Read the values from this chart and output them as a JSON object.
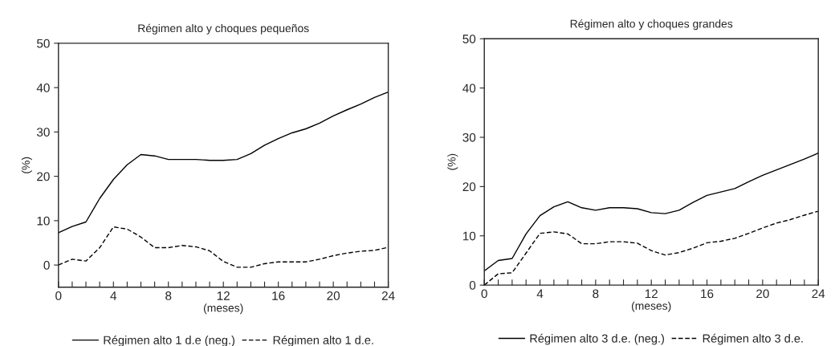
{
  "chart_data": [
    {
      "type": "line",
      "title": "Régimen alto y choques pequeños",
      "xlabel": "(meses)",
      "ylabel": "(%)",
      "xlim": [
        0,
        24
      ],
      "ylim": [
        -5,
        50
      ],
      "xticks": [
        0,
        {
          "value": 1,
          "label": null
        },
        {
          "value": 2,
          "label": null
        },
        {
          "value": 3,
          "label": null
        },
        4,
        {
          "value": 5,
          "label": null
        },
        {
          "value": 6,
          "label": null
        },
        {
          "value": 7,
          "label": null
        },
        8,
        {
          "value": 9,
          "label": null
        },
        {
          "value": 10,
          "label": null
        },
        {
          "value": 11,
          "label": null
        },
        12,
        {
          "value": 13,
          "label": null
        },
        {
          "value": 14,
          "label": null
        },
        {
          "value": 15,
          "label": null
        },
        16,
        {
          "value": 17,
          "label": null
        },
        {
          "value": 18,
          "label": null
        },
        {
          "value": 19,
          "label": null
        },
        20,
        {
          "value": 21,
          "label": null
        },
        {
          "value": 22,
          "label": null
        },
        {
          "value": 23,
          "label": null
        },
        24
      ],
      "yticks": [
        0,
        10,
        20,
        30,
        40,
        50
      ],
      "grid": false,
      "legend": "bottom",
      "x": [
        0,
        1,
        2,
        3,
        4,
        5,
        6,
        7,
        8,
        9,
        10,
        11,
        12,
        13,
        14,
        15,
        16,
        17,
        18,
        19,
        20,
        21,
        22,
        23,
        24
      ],
      "series": [
        {
          "name": "Régimen alto 1 d.e (neg.)",
          "color": "#000000",
          "line_style": "solid",
          "values": [
            7.3,
            8.7,
            9.7,
            15,
            19.3,
            22.6,
            24.9,
            24.6,
            23.8,
            23.8,
            23.8,
            23.6,
            23.6,
            23.8,
            25.1,
            27,
            28.5,
            29.8,
            30.7,
            32,
            33.6,
            35,
            36.3,
            37.8,
            39
          ]
        },
        {
          "name": "Régimen alto 1 d.e.",
          "color": "#000000",
          "line_style": "dashed",
          "values": [
            0,
            1.3,
            0.9,
            3.9,
            8.6,
            8.1,
            6.3,
            3.9,
            3.9,
            4.4,
            4.1,
            3.2,
            0.8,
            -0.5,
            -0.5,
            0.3,
            0.7,
            0.7,
            0.7,
            1.3,
            2.1,
            2.7,
            3.1,
            3.3,
            4
          ]
        }
      ]
    },
    {
      "type": "line",
      "title": "Régimen alto y choques grandes",
      "xlabel": "(meses)",
      "ylabel": "(%)",
      "xlim": [
        0,
        24
      ],
      "ylim": [
        0,
        50
      ],
      "xticks": [
        0,
        {
          "value": 1,
          "label": null
        },
        {
          "value": 2,
          "label": null
        },
        {
          "value": 3,
          "label": null
        },
        4,
        {
          "value": 5,
          "label": null
        },
        {
          "value": 6,
          "label": null
        },
        {
          "value": 7,
          "label": null
        },
        8,
        {
          "value": 9,
          "label": null
        },
        {
          "value": 10,
          "label": null
        },
        {
          "value": 11,
          "label": null
        },
        12,
        {
          "value": 13,
          "label": null
        },
        {
          "value": 14,
          "label": null
        },
        {
          "value": 15,
          "label": null
        },
        16,
        {
          "value": 17,
          "label": null
        },
        {
          "value": 18,
          "label": null
        },
        {
          "value": 19,
          "label": null
        },
        20,
        {
          "value": 21,
          "label": null
        },
        {
          "value": 22,
          "label": null
        },
        {
          "value": 23,
          "label": null
        },
        24
      ],
      "yticks": [
        0,
        10,
        20,
        30,
        40,
        50
      ],
      "grid": false,
      "legend": "bottom",
      "x": [
        0,
        1,
        2,
        3,
        4,
        5,
        6,
        7,
        8,
        9,
        10,
        11,
        12,
        13,
        14,
        15,
        16,
        17,
        18,
        19,
        20,
        21,
        22,
        23,
        24
      ],
      "series": [
        {
          "name": "Régimen alto 3 d.e. (neg.)",
          "color": "#000000",
          "line_style": "solid",
          "values": [
            2.9,
            5,
            5.4,
            10.4,
            14.1,
            15.9,
            16.9,
            15.7,
            15.2,
            15.7,
            15.7,
            15.5,
            14.7,
            14.5,
            15.2,
            16.8,
            18.2,
            18.9,
            19.6,
            21,
            22.3,
            23.4,
            24.5,
            25.6,
            26.8
          ]
        },
        {
          "name": "Régimen alto 3 d.e.",
          "color": "#000000",
          "line_style": "dashed",
          "values": [
            0,
            2.3,
            2.5,
            6.5,
            10.5,
            10.8,
            10.4,
            8.4,
            8.4,
            8.8,
            8.8,
            8.5,
            7,
            6.1,
            6.6,
            7.5,
            8.6,
            8.9,
            9.5,
            10.5,
            11.6,
            12.6,
            13.3,
            14.2,
            15
          ]
        }
      ]
    }
  ]
}
